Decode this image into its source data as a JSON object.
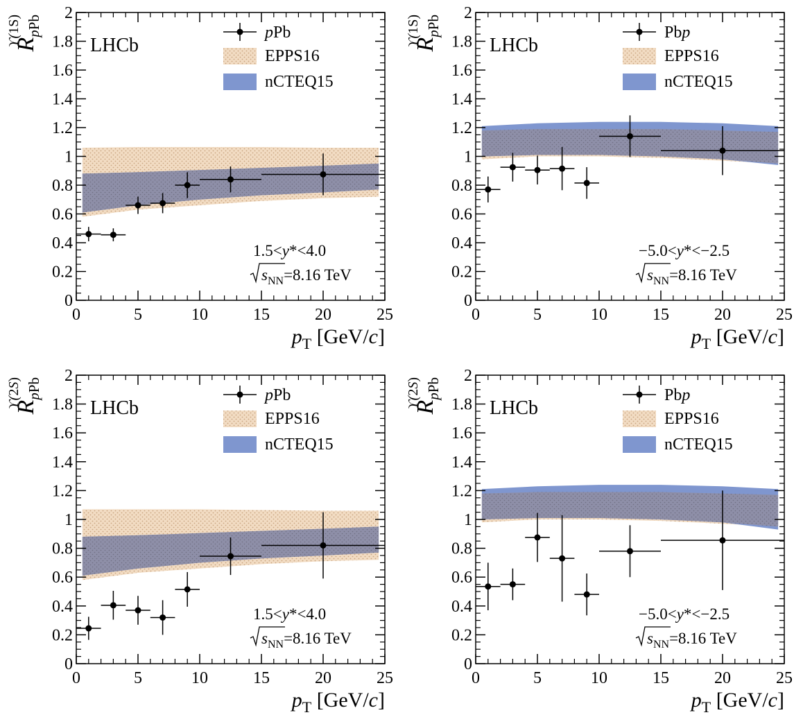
{
  "chart_data": [
    {
      "type": "scatter",
      "panel": "top-left",
      "xlabel": {
        "main": "p",
        "sub": "T",
        "unit": "[GeV/c]"
      },
      "ylabel": {
        "main": "R",
        "sub": "pPb",
        "sup": "ϒ(1S)"
      },
      "xlim": [
        0,
        25
      ],
      "ylim": [
        0,
        2
      ],
      "xticks": [
        "0",
        "5",
        "10",
        "15",
        "20",
        "25"
      ],
      "yticks": [
        "0",
        "0.2",
        "0.4",
        "0.6",
        "0.8",
        "1",
        "1.2",
        "1.4",
        "1.6",
        "1.8",
        "2"
      ],
      "experiment": "LHCb",
      "annotations": [
        "1.5<y*<4.0",
        "√sNN=8.16 TeV"
      ],
      "legend": {
        "placement": "top-right",
        "entries": [
          "pPb",
          "EPPS16",
          "nCTEQ15"
        ]
      },
      "series": [
        {
          "name": "pPb",
          "points": [
            {
              "x": 1,
              "xerr": 1,
              "y": 0.46,
              "yerr": 0.05
            },
            {
              "x": 3,
              "xerr": 1,
              "y": 0.455,
              "yerr": 0.045
            },
            {
              "x": 5,
              "xerr": 1,
              "y": 0.66,
              "yerr": 0.06
            },
            {
              "x": 7,
              "xerr": 1,
              "y": 0.675,
              "yerr": 0.07
            },
            {
              "x": 9,
              "xerr": 1,
              "y": 0.8,
              "yerr": 0.09
            },
            {
              "x": 12.5,
              "xerr": 2.5,
              "y": 0.84,
              "yerr": 0.09
            },
            {
              "x": 20,
              "xerr": 5,
              "y": 0.875,
              "yerr": 0.145
            }
          ]
        },
        {
          "name": "EPPS16",
          "band": {
            "x": [
              0.5,
              5,
              10,
              15,
              20,
              24.5
            ],
            "lo": [
              0.58,
              0.63,
              0.66,
              0.69,
              0.71,
              0.72
            ],
            "hi": [
              1.06,
              1.065,
              1.065,
              1.065,
              1.06,
              1.06
            ]
          }
        },
        {
          "name": "nCTEQ15",
          "band": {
            "x": [
              0.5,
              5,
              10,
              15,
              20,
              24.5
            ],
            "lo": [
              0.61,
              0.66,
              0.7,
              0.73,
              0.75,
              0.77
            ],
            "hi": [
              0.88,
              0.89,
              0.905,
              0.92,
              0.935,
              0.95
            ]
          }
        }
      ]
    },
    {
      "type": "scatter",
      "panel": "top-right",
      "xlabel": {
        "main": "p",
        "sub": "T",
        "unit": "[GeV/c]"
      },
      "ylabel": {
        "main": "R",
        "sub": "pPb",
        "sup": "ϒ(1S)"
      },
      "xlim": [
        0,
        25
      ],
      "ylim": [
        0,
        2
      ],
      "xticks": [
        "0",
        "5",
        "10",
        "15",
        "20",
        "25"
      ],
      "yticks": [
        "0",
        "0.2",
        "0.4",
        "0.6",
        "0.8",
        "1",
        "1.2",
        "1.4",
        "1.6",
        "1.8",
        "2"
      ],
      "experiment": "LHCb",
      "annotations": [
        "−5.0<y*<−2.5",
        "√sNN=8.16 TeV"
      ],
      "legend": {
        "placement": "top-right",
        "entries": [
          "Pbp",
          "EPPS16",
          "nCTEQ15"
        ]
      },
      "series": [
        {
          "name": "Pbp",
          "points": [
            {
              "x": 1,
              "xerr": 1,
              "y": 0.77,
              "yerr": 0.09
            },
            {
              "x": 3,
              "xerr": 1,
              "y": 0.925,
              "yerr": 0.1
            },
            {
              "x": 5,
              "xerr": 1,
              "y": 0.905,
              "yerr": 0.1
            },
            {
              "x": 7,
              "xerr": 1,
              "y": 0.915,
              "yerr": 0.15
            },
            {
              "x": 9,
              "xerr": 1,
              "y": 0.815,
              "yerr": 0.11
            },
            {
              "x": 12.5,
              "xerr": 2.5,
              "y": 1.14,
              "yerr": 0.145
            },
            {
              "x": 20,
              "xerr": 5,
              "y": 1.04,
              "yerr": 0.17
            }
          ]
        },
        {
          "name": "EPPS16",
          "band": {
            "x": [
              0.5,
              5,
              10,
              15,
              20,
              24.5
            ],
            "lo": [
              0.98,
              1.0,
              1.0,
              0.99,
              0.97,
              0.95
            ],
            "hi": [
              1.18,
              1.19,
              1.19,
              1.19,
              1.18,
              1.17
            ]
          }
        },
        {
          "name": "nCTEQ15",
          "band": {
            "x": [
              0.5,
              5,
              10,
              15,
              20,
              24.5
            ],
            "lo": [
              1.0,
              1.01,
              1.01,
              1.0,
              0.98,
              0.94
            ],
            "hi": [
              1.21,
              1.23,
              1.24,
              1.24,
              1.23,
              1.21
            ]
          }
        }
      ]
    },
    {
      "type": "scatter",
      "panel": "bottom-left",
      "xlabel": {
        "main": "p",
        "sub": "T",
        "unit": "[GeV/c]"
      },
      "ylabel": {
        "main": "R",
        "sub": "pPb",
        "sup": "ϒ(2S)"
      },
      "xlim": [
        0,
        25
      ],
      "ylim": [
        0,
        2
      ],
      "xticks": [
        "0",
        "5",
        "10",
        "15",
        "20",
        "25"
      ],
      "yticks": [
        "0",
        "0.2",
        "0.4",
        "0.6",
        "0.8",
        "1",
        "1.2",
        "1.4",
        "1.6",
        "1.8",
        "2"
      ],
      "experiment": "LHCb",
      "annotations": [
        "1.5<y*<4.0",
        "√sNN=8.16 TeV"
      ],
      "legend": {
        "placement": "top-right",
        "entries": [
          "pPb",
          "EPPS16",
          "nCTEQ15"
        ]
      },
      "series": [
        {
          "name": "pPb",
          "points": [
            {
              "x": 1,
              "xerr": 1,
              "y": 0.245,
              "yerr": 0.08
            },
            {
              "x": 3,
              "xerr": 1,
              "y": 0.405,
              "yerr": 0.1
            },
            {
              "x": 5,
              "xerr": 1,
              "y": 0.37,
              "yerr": 0.1
            },
            {
              "x": 7,
              "xerr": 1,
              "y": 0.32,
              "yerr": 0.12
            },
            {
              "x": 9,
              "xerr": 1,
              "y": 0.515,
              "yerr": 0.12
            },
            {
              "x": 12.5,
              "xerr": 2.5,
              "y": 0.745,
              "yerr": 0.13
            },
            {
              "x": 20,
              "xerr": 5,
              "y": 0.82,
              "yerr": 0.23
            }
          ]
        },
        {
          "name": "EPPS16",
          "band": {
            "x": [
              0.5,
              5,
              10,
              15,
              20,
              24.5
            ],
            "lo": [
              0.58,
              0.63,
              0.66,
              0.69,
              0.71,
              0.72
            ],
            "hi": [
              1.07,
              1.07,
              1.07,
              1.065,
              1.06,
              1.06
            ]
          }
        },
        {
          "name": "nCTEQ15",
          "band": {
            "x": [
              0.5,
              5,
              10,
              15,
              20,
              24.5
            ],
            "lo": [
              0.61,
              0.66,
              0.7,
              0.73,
              0.75,
              0.77
            ],
            "hi": [
              0.88,
              0.89,
              0.905,
              0.92,
              0.935,
              0.95
            ]
          }
        }
      ]
    },
    {
      "type": "scatter",
      "panel": "bottom-right",
      "xlabel": {
        "main": "p",
        "sub": "T",
        "unit": "[GeV/c]"
      },
      "ylabel": {
        "main": "R",
        "sub": "pPb",
        "sup": "ϒ(2S)"
      },
      "xlim": [
        0,
        25
      ],
      "ylim": [
        0,
        2
      ],
      "xticks": [
        "0",
        "5",
        "10",
        "15",
        "20",
        "25"
      ],
      "yticks": [
        "0",
        "0.2",
        "0.4",
        "0.6",
        "0.8",
        "1",
        "1.2",
        "1.4",
        "1.6",
        "1.8",
        "2"
      ],
      "experiment": "LHCb",
      "annotations": [
        "−5.0<y*<−2.5",
        "√sNN=8.16 TeV"
      ],
      "legend": {
        "placement": "top-right",
        "entries": [
          "Pbp",
          "EPPS16",
          "nCTEQ15"
        ]
      },
      "series": [
        {
          "name": "Pbp",
          "points": [
            {
              "x": 1,
              "xerr": 1,
              "y": 0.535,
              "yerr": 0.165
            },
            {
              "x": 3,
              "xerr": 1,
              "y": 0.55,
              "yerr": 0.11
            },
            {
              "x": 5,
              "xerr": 1,
              "y": 0.875,
              "yerr": 0.17
            },
            {
              "x": 7,
              "xerr": 1,
              "y": 0.73,
              "yerr": 0.3
            },
            {
              "x": 9,
              "xerr": 1,
              "y": 0.48,
              "yerr": 0.145
            },
            {
              "x": 12.5,
              "xerr": 2.5,
              "y": 0.78,
              "yerr": 0.18
            },
            {
              "x": 20,
              "xerr": 5,
              "y": 0.855,
              "yerr": 0.345
            }
          ]
        },
        {
          "name": "EPPS16",
          "band": {
            "x": [
              0.5,
              5,
              10,
              15,
              20,
              24.5
            ],
            "lo": [
              0.98,
              1.0,
              1.0,
              0.99,
              0.97,
              0.95
            ],
            "hi": [
              1.18,
              1.19,
              1.19,
              1.19,
              1.18,
              1.17
            ]
          }
        },
        {
          "name": "nCTEQ15",
          "band": {
            "x": [
              0.5,
              5,
              10,
              15,
              20,
              24.5
            ],
            "lo": [
              1.0,
              1.01,
              1.01,
              1.0,
              0.98,
              0.93
            ],
            "hi": [
              1.21,
              1.23,
              1.24,
              1.24,
              1.23,
              1.21
            ]
          }
        }
      ]
    }
  ],
  "colors": {
    "epps16_fill": "#f2dcc3",
    "epps16_dot": "#c9a580",
    "nteq15_fill": "#7f96cf",
    "overlap_fill": "#8e8fa8",
    "overlap_dot": "#6f6f82",
    "marker": "#000000"
  }
}
